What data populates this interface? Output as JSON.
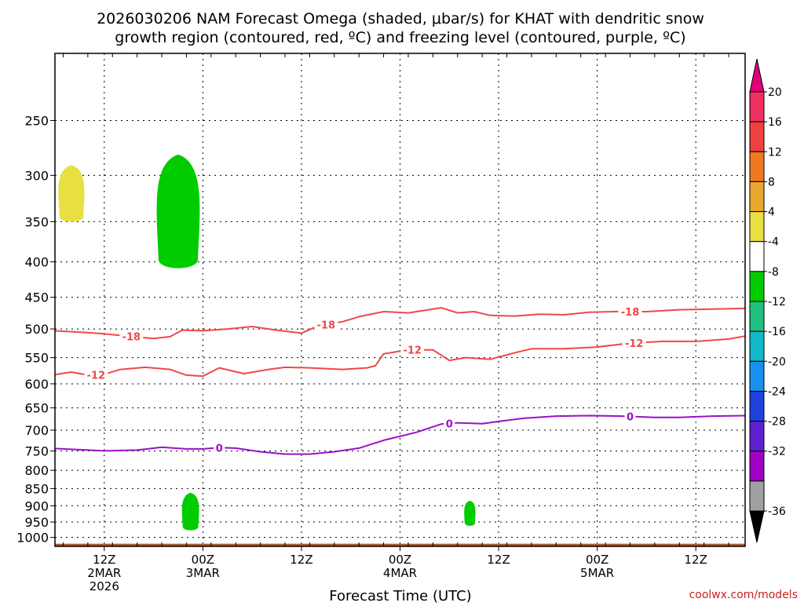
{
  "chart_data": {
    "type": "contour",
    "title_lines": [
      "2026030206 NAM Forecast Omega (shaded, μbar/s) for KHAT with dendritic snow",
      "growth region (contoured, red, ºC) and freezing level (contoured, purple, ºC)"
    ],
    "xlabel": "Forecast Time (UTC)",
    "ylabel": "",
    "x_range_hours": [
      0,
      84
    ],
    "y_range_hpa": [
      200,
      1030
    ],
    "y_scale": "log-pressure, reversed",
    "grid": true,
    "y_ticks": [
      250,
      300,
      350,
      400,
      450,
      500,
      550,
      600,
      650,
      700,
      750,
      800,
      850,
      900,
      950,
      1000
    ],
    "x_ticks": [
      {
        "hour": 6,
        "lines": [
          "12Z",
          "2MAR",
          "2026"
        ]
      },
      {
        "hour": 18,
        "lines": [
          "00Z",
          "3MAR"
        ]
      },
      {
        "hour": 30,
        "lines": [
          "12Z"
        ]
      },
      {
        "hour": 42,
        "lines": [
          "00Z",
          "4MAR"
        ]
      },
      {
        "hour": 54,
        "lines": [
          "12Z"
        ]
      },
      {
        "hour": 66,
        "lines": [
          "00Z",
          "5MAR"
        ]
      },
      {
        "hour": 78,
        "lines": [
          "12Z"
        ]
      }
    ],
    "colorbar": {
      "labels": [
        "20",
        "16",
        "12",
        "8",
        "4",
        "-4",
        "-8",
        "-12",
        "-16",
        "-20",
        "-24",
        "-28",
        "-32",
        "-36"
      ],
      "colors": [
        "#f03060",
        "#f04040",
        "#f07820",
        "#e8a830",
        "#e8e040",
        "#ffffff",
        "#00cc00",
        "#20c080",
        "#10b8c8",
        "#1890f0",
        "#2040e0",
        "#6020d0",
        "#a000c8",
        "#a0a0a0"
      ],
      "top_arrow_color": "#e0007a",
      "bottom_arrow_color": "#000000"
    },
    "series": [
      {
        "name": "-18",
        "color": "#f04848",
        "points": [
          [
            0,
            503
          ],
          [
            4,
            506
          ],
          [
            6,
            508
          ],
          [
            8,
            511
          ],
          [
            12,
            516
          ],
          [
            14,
            513
          ],
          [
            15.5,
            502
          ],
          [
            18,
            503
          ],
          [
            21,
            500
          ],
          [
            24,
            496
          ],
          [
            27,
            502
          ],
          [
            30,
            507
          ],
          [
            32,
            495
          ],
          [
            35,
            488
          ],
          [
            37,
            480
          ],
          [
            40,
            472
          ],
          [
            43,
            474
          ],
          [
            45,
            470
          ],
          [
            47,
            466
          ],
          [
            49,
            474
          ],
          [
            51,
            472
          ],
          [
            53,
            478
          ],
          [
            56,
            479
          ],
          [
            59,
            476
          ],
          [
            62,
            477
          ],
          [
            65,
            473
          ],
          [
            68,
            472
          ],
          [
            72,
            472
          ],
          [
            76,
            469
          ],
          [
            80,
            468
          ],
          [
            84,
            467
          ]
        ],
        "labels": [
          {
            "x": 9.3,
            "p": 515
          },
          {
            "x": 33,
            "p": 492
          },
          {
            "x": 70,
            "p": 472
          }
        ]
      },
      {
        "name": "-12",
        "color": "#f04848",
        "points": [
          [
            0,
            582
          ],
          [
            2,
            577
          ],
          [
            4,
            583
          ],
          [
            6,
            581
          ],
          [
            8,
            572
          ],
          [
            11,
            568
          ],
          [
            14,
            572
          ],
          [
            16,
            583
          ],
          [
            18,
            585
          ],
          [
            20,
            569
          ],
          [
            23,
            580
          ],
          [
            26,
            572
          ],
          [
            28,
            568
          ],
          [
            31,
            569
          ],
          [
            35,
            572
          ],
          [
            38,
            569
          ],
          [
            39,
            565
          ],
          [
            40,
            543
          ],
          [
            43,
            536
          ],
          [
            46,
            536
          ],
          [
            48,
            555
          ],
          [
            50,
            550
          ],
          [
            53,
            553
          ],
          [
            56,
            541
          ],
          [
            58,
            534
          ],
          [
            62,
            534
          ],
          [
            66,
            531
          ],
          [
            70,
            524
          ],
          [
            74,
            521
          ],
          [
            78,
            521
          ],
          [
            82,
            517
          ],
          [
            84,
            512
          ]
        ],
        "labels": [
          {
            "x": 5,
            "p": 584
          },
          {
            "x": 43.5,
            "p": 536
          },
          {
            "x": 70.5,
            "p": 522
          }
        ]
      },
      {
        "name": "0",
        "color": "#9a10c8",
        "points": [
          [
            0,
            744
          ],
          [
            6,
            750
          ],
          [
            10,
            748
          ],
          [
            13,
            741
          ],
          [
            16,
            745
          ],
          [
            18,
            745
          ],
          [
            20,
            742
          ],
          [
            22,
            743
          ],
          [
            25,
            752
          ],
          [
            28,
            758
          ],
          [
            31,
            758
          ],
          [
            34,
            752
          ],
          [
            37,
            743
          ],
          [
            40,
            724
          ],
          [
            44,
            705
          ],
          [
            47,
            686
          ],
          [
            49,
            683
          ],
          [
            52,
            685
          ],
          [
            54,
            680
          ],
          [
            57,
            673
          ],
          [
            61,
            668
          ],
          [
            65,
            667
          ],
          [
            69,
            668
          ],
          [
            73,
            671
          ],
          [
            76,
            671
          ],
          [
            80,
            668
          ],
          [
            84,
            667
          ]
        ],
        "labels": [
          {
            "x": 20,
            "p": 743
          },
          {
            "x": 48,
            "p": 683
          },
          {
            "x": 70,
            "p": 667
          }
        ]
      }
    ],
    "shaded_regions": [
      {
        "value_range": [
          4,
          8
        ],
        "color": "#e8e040",
        "center_hour": 2,
        "p_range": [
          290,
          350
        ]
      },
      {
        "value_range": [
          -8,
          -4
        ],
        "color": "#00cc00",
        "center_hour": 15,
        "p_range": [
          280,
          410
        ]
      },
      {
        "value_range": [
          -8,
          -4
        ],
        "color": "#00cc00",
        "center_hour": 16.5,
        "p_range": [
          862,
          975
        ]
      },
      {
        "value_range": [
          -8,
          -4
        ],
        "color": "#00cc00",
        "center_hour": 50.5,
        "p_range": [
          885,
          960
        ]
      }
    ],
    "ground_color": "#b05a2e"
  },
  "watermark": "coolwx.com/models"
}
